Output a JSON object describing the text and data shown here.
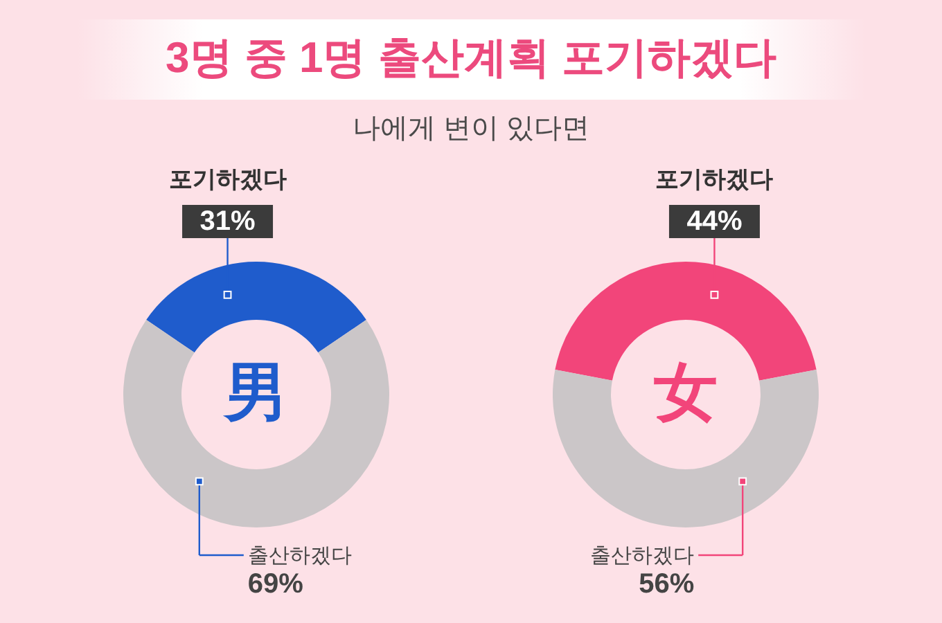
{
  "chart_data": [
    {
      "type": "other",
      "title": "3명 중 1명 출산계획 포기하겠다",
      "subtitle": "나에게 변이 있다면"
    },
    {
      "type": "donut",
      "title": "男",
      "categories": [
        "포기하겠다",
        "출산하겠다"
      ],
      "values": [
        31,
        69
      ],
      "colors": [
        "#1f5ccc",
        "#cbc6c8"
      ],
      "value_labels": [
        "31%",
        "69%"
      ]
    },
    {
      "type": "donut",
      "title": "女",
      "categories": [
        "포기하겠다",
        "출산하겠다"
      ],
      "values": [
        44,
        56
      ],
      "colors": [
        "#f2457a",
        "#cbc6c8"
      ],
      "value_labels": [
        "44%",
        "56%"
      ]
    }
  ]
}
